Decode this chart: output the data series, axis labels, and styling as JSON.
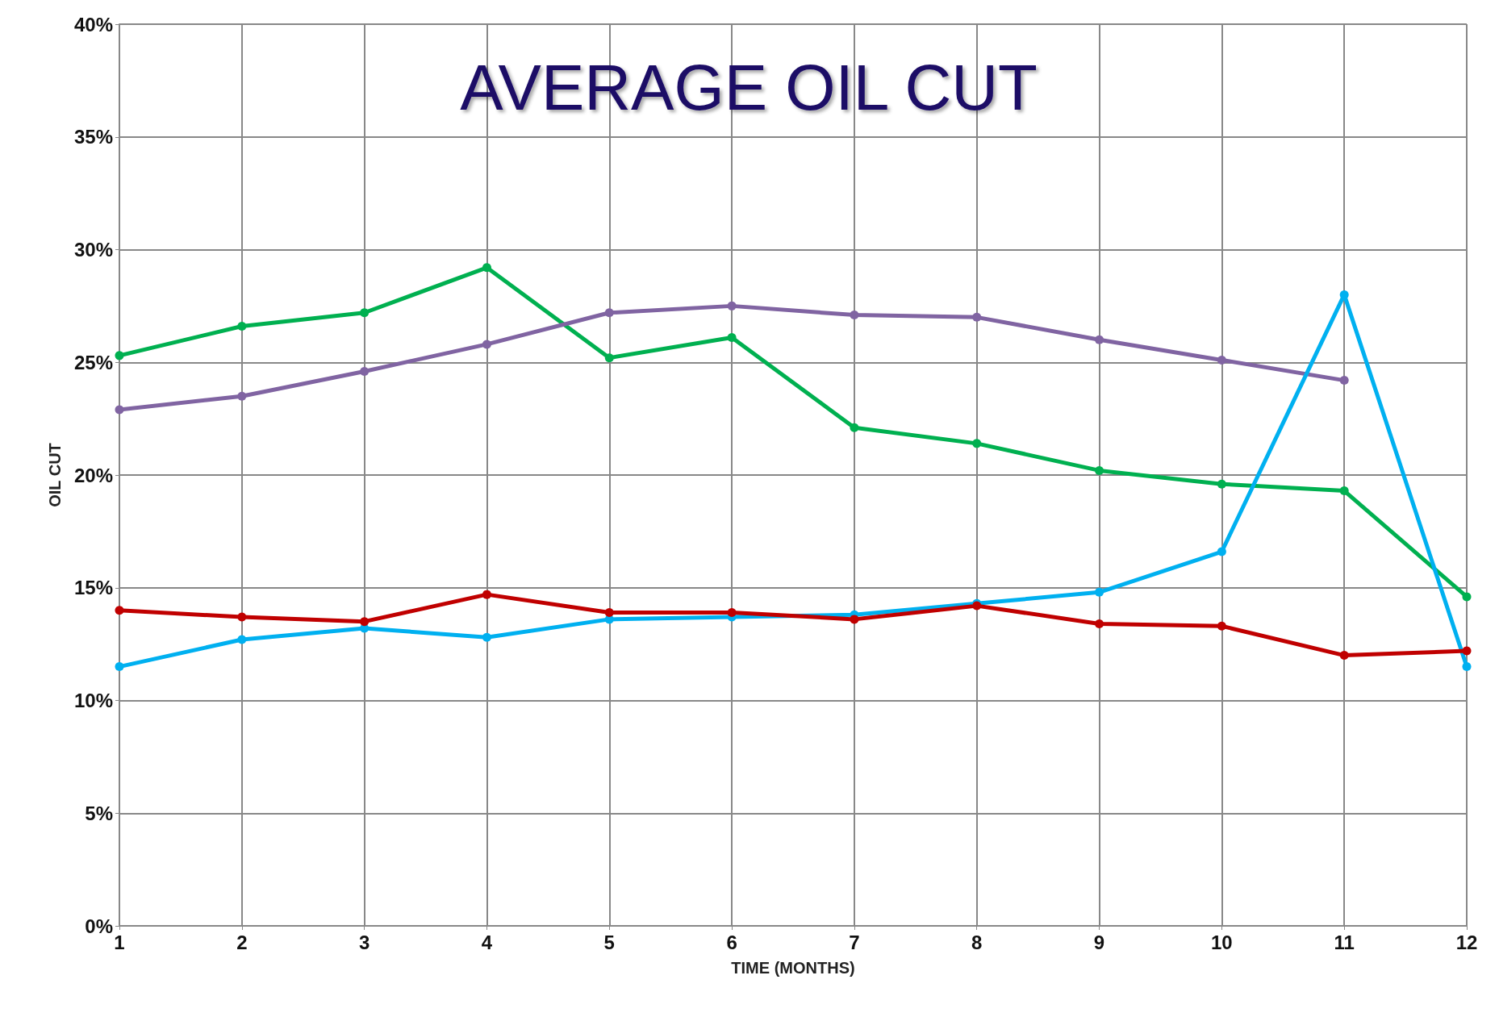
{
  "chart_data": {
    "type": "line",
    "title": "AVERAGE OIL CUT",
    "xlabel": "TIME (MONTHS)",
    "ylabel": "OIL CUT",
    "x": [
      1,
      2,
      3,
      4,
      5,
      6,
      7,
      8,
      9,
      10,
      11,
      12
    ],
    "series": [
      {
        "color": "#00b050",
        "values": [
          25.3,
          26.6,
          27.2,
          29.2,
          25.2,
          26.1,
          22.1,
          21.4,
          20.2,
          19.6,
          19.3,
          14.6
        ]
      },
      {
        "color": "#8064a2",
        "values": [
          22.9,
          23.5,
          24.6,
          25.8,
          27.2,
          27.5,
          27.1,
          27.0,
          26.0,
          25.1,
          24.2,
          null
        ]
      },
      {
        "color": "#00b0f0",
        "values": [
          11.5,
          12.7,
          13.2,
          12.8,
          13.6,
          13.7,
          13.8,
          14.3,
          14.8,
          16.6,
          28.0,
          11.5
        ]
      },
      {
        "color": "#c00000",
        "values": [
          14.0,
          13.7,
          13.5,
          14.7,
          13.9,
          13.9,
          13.6,
          14.2,
          13.4,
          13.3,
          12.0,
          12.2
        ]
      }
    ],
    "xlim": [
      1,
      12
    ],
    "xticks": [
      1,
      2,
      3,
      4,
      5,
      6,
      7,
      8,
      9,
      10,
      11,
      12
    ],
    "ylim": [
      0,
      40
    ],
    "yticks": [
      {
        "value": 0,
        "label": "0%"
      },
      {
        "value": 5,
        "label": "5%"
      },
      {
        "value": 10,
        "label": "10%"
      },
      {
        "value": 15,
        "label": "15%"
      },
      {
        "value": 20,
        "label": "20%"
      },
      {
        "value": 25,
        "label": "25%"
      },
      {
        "value": 30,
        "label": "30%"
      },
      {
        "value": 35,
        "label": "35%"
      },
      {
        "value": 40,
        "label": "40%"
      }
    ],
    "grid": true,
    "marker": "circle",
    "line_style": "solid"
  }
}
